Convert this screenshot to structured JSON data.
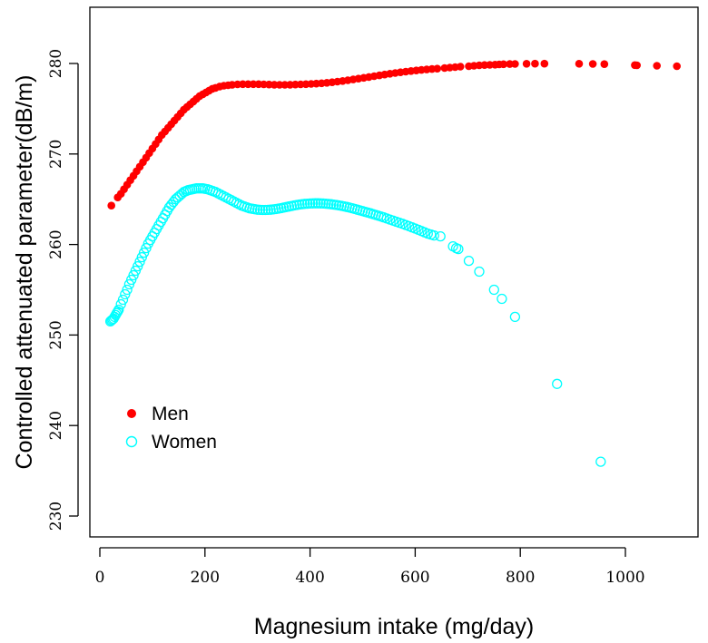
{
  "chart_data": {
    "type": "scatter",
    "title": "",
    "xlabel": "Magnesium intake (mg/day)",
    "ylabel": "Controlled attenuated parameter(dB/m)",
    "xlim": [
      -10,
      1120
    ],
    "ylim": [
      226,
      287
    ],
    "x_ticks": [
      0,
      200,
      400,
      600,
      800,
      1000
    ],
    "y_ticks": [
      230,
      240,
      250,
      260,
      270,
      280
    ],
    "grid": false,
    "legend_position": "middle-left",
    "series": [
      {
        "name": "Men",
        "marker": "filled-circle",
        "color": "#ff0000",
        "points": [
          [
            22,
            264.3
          ],
          [
            34,
            265.2
          ],
          [
            40,
            265.6
          ],
          [
            46,
            266.1
          ],
          [
            52,
            266.6
          ],
          [
            58,
            267.1
          ],
          [
            64,
            267.6
          ],
          [
            70,
            268.1
          ],
          [
            76,
            268.6
          ],
          [
            82,
            269.1
          ],
          [
            88,
            269.6
          ],
          [
            94,
            270.1
          ],
          [
            100,
            270.6
          ],
          [
            106,
            271.1
          ],
          [
            112,
            271.6
          ],
          [
            118,
            272.1
          ],
          [
            124,
            272.5
          ],
          [
            130,
            272.9
          ],
          [
            136,
            273.3
          ],
          [
            142,
            273.7
          ],
          [
            148,
            274.1
          ],
          [
            154,
            274.5
          ],
          [
            160,
            274.9
          ],
          [
            166,
            275.2
          ],
          [
            172,
            275.5
          ],
          [
            178,
            275.8
          ],
          [
            184,
            276.1
          ],
          [
            190,
            276.4
          ],
          [
            196,
            276.6
          ],
          [
            202,
            276.8
          ],
          [
            208,
            277.0
          ],
          [
            214,
            277.2
          ],
          [
            220,
            277.3
          ],
          [
            228,
            277.45
          ],
          [
            236,
            277.55
          ],
          [
            244,
            277.6
          ],
          [
            252,
            277.65
          ],
          [
            262,
            277.7
          ],
          [
            272,
            277.72
          ],
          [
            282,
            277.72
          ],
          [
            292,
            277.72
          ],
          [
            302,
            277.72
          ],
          [
            312,
            277.7
          ],
          [
            322,
            277.68
          ],
          [
            332,
            277.66
          ],
          [
            342,
            277.65
          ],
          [
            352,
            277.65
          ],
          [
            362,
            277.66
          ],
          [
            372,
            277.68
          ],
          [
            382,
            277.7
          ],
          [
            392,
            277.72
          ],
          [
            402,
            277.75
          ],
          [
            412,
            277.78
          ],
          [
            422,
            277.82
          ],
          [
            432,
            277.87
          ],
          [
            442,
            277.93
          ],
          [
            452,
            278.0
          ],
          [
            462,
            278.07
          ],
          [
            472,
            278.15
          ],
          [
            482,
            278.24
          ],
          [
            492,
            278.33
          ],
          [
            502,
            278.42
          ],
          [
            512,
            278.51
          ],
          [
            522,
            278.6
          ],
          [
            532,
            278.69
          ],
          [
            542,
            278.78
          ],
          [
            552,
            278.87
          ],
          [
            562,
            278.95
          ],
          [
            572,
            279.03
          ],
          [
            582,
            279.1
          ],
          [
            592,
            279.17
          ],
          [
            602,
            279.23
          ],
          [
            612,
            279.29
          ],
          [
            622,
            279.34
          ],
          [
            632,
            279.39
          ],
          [
            642,
            279.43
          ],
          [
            656,
            279.5
          ],
          [
            666,
            279.55
          ],
          [
            676,
            279.6
          ],
          [
            686,
            279.65
          ],
          [
            702,
            279.7
          ],
          [
            712,
            279.75
          ],
          [
            722,
            279.8
          ],
          [
            732,
            279.83
          ],
          [
            742,
            279.85
          ],
          [
            752,
            279.87
          ],
          [
            760,
            279.9
          ],
          [
            768,
            279.92
          ],
          [
            780,
            279.94
          ],
          [
            790,
            279.95
          ],
          [
            812,
            279.97
          ],
          [
            828,
            279.98
          ],
          [
            846,
            279.98
          ],
          [
            912,
            279.97
          ],
          [
            938,
            279.95
          ],
          [
            960,
            279.93
          ],
          [
            1018,
            279.82
          ],
          [
            1022,
            279.8
          ],
          [
            1060,
            279.75
          ],
          [
            1098,
            279.7
          ]
        ]
      },
      {
        "name": "Women",
        "marker": "open-circle",
        "color": "#00ffff",
        "points": [
          [
            20,
            251.5
          ],
          [
            22,
            251.6
          ],
          [
            24,
            251.7
          ],
          [
            26,
            251.8
          ],
          [
            28,
            252.0
          ],
          [
            30,
            252.2
          ],
          [
            32,
            252.4
          ],
          [
            34,
            252.6
          ],
          [
            36,
            252.8
          ],
          [
            40,
            253.4
          ],
          [
            44,
            253.9
          ],
          [
            48,
            254.5
          ],
          [
            52,
            255.0
          ],
          [
            56,
            255.6
          ],
          [
            60,
            256.1
          ],
          [
            64,
            256.6
          ],
          [
            68,
            257.1
          ],
          [
            72,
            257.6
          ],
          [
            76,
            258.1
          ],
          [
            80,
            258.6
          ],
          [
            84,
            259.1
          ],
          [
            88,
            259.6
          ],
          [
            92,
            260.1
          ],
          [
            96,
            260.5
          ],
          [
            100,
            260.9
          ],
          [
            104,
            261.3
          ],
          [
            108,
            261.7
          ],
          [
            112,
            262.1
          ],
          [
            116,
            262.5
          ],
          [
            120,
            262.9
          ],
          [
            124,
            263.3
          ],
          [
            128,
            263.7
          ],
          [
            132,
            264.1
          ],
          [
            136,
            264.4
          ],
          [
            140,
            264.7
          ],
          [
            144,
            265.0
          ],
          [
            148,
            265.2
          ],
          [
            152,
            265.4
          ],
          [
            156,
            265.6
          ],
          [
            160,
            265.8
          ],
          [
            164,
            265.9
          ],
          [
            168,
            266.0
          ],
          [
            172,
            266.05
          ],
          [
            176,
            266.1
          ],
          [
            180,
            266.15
          ],
          [
            184,
            266.2
          ],
          [
            188,
            266.2
          ],
          [
            192,
            266.2
          ],
          [
            196,
            266.2
          ],
          [
            200,
            266.15
          ],
          [
            205,
            266.1
          ],
          [
            210,
            266.0
          ],
          [
            215,
            265.9
          ],
          [
            220,
            265.8
          ],
          [
            225,
            265.65
          ],
          [
            230,
            265.5
          ],
          [
            235,
            265.35
          ],
          [
            240,
            265.2
          ],
          [
            245,
            265.05
          ],
          [
            250,
            264.9
          ],
          [
            255,
            264.75
          ],
          [
            260,
            264.6
          ],
          [
            265,
            264.45
          ],
          [
            270,
            264.3
          ],
          [
            275,
            264.2
          ],
          [
            280,
            264.1
          ],
          [
            285,
            264.0
          ],
          [
            290,
            263.95
          ],
          [
            295,
            263.9
          ],
          [
            300,
            263.85
          ],
          [
            305,
            263.83
          ],
          [
            310,
            263.82
          ],
          [
            315,
            263.82
          ],
          [
            320,
            263.83
          ],
          [
            325,
            263.85
          ],
          [
            330,
            263.88
          ],
          [
            335,
            263.92
          ],
          [
            340,
            263.97
          ],
          [
            345,
            264.02
          ],
          [
            350,
            264.08
          ],
          [
            355,
            264.14
          ],
          [
            360,
            264.2
          ],
          [
            365,
            264.26
          ],
          [
            370,
            264.32
          ],
          [
            375,
            264.37
          ],
          [
            380,
            264.42
          ],
          [
            385,
            264.46
          ],
          [
            390,
            264.49
          ],
          [
            395,
            264.51
          ],
          [
            400,
            264.53
          ],
          [
            405,
            264.54
          ],
          [
            410,
            264.55
          ],
          [
            415,
            264.55
          ],
          [
            420,
            264.54
          ],
          [
            425,
            264.53
          ],
          [
            430,
            264.51
          ],
          [
            435,
            264.48
          ],
          [
            440,
            264.45
          ],
          [
            445,
            264.41
          ],
          [
            450,
            264.37
          ],
          [
            455,
            264.32
          ],
          [
            460,
            264.27
          ],
          [
            465,
            264.21
          ],
          [
            470,
            264.15
          ],
          [
            475,
            264.08
          ],
          [
            480,
            264.01
          ],
          [
            485,
            263.93
          ],
          [
            490,
            263.85
          ],
          [
            495,
            263.77
          ],
          [
            500,
            263.69
          ],
          [
            505,
            263.61
          ],
          [
            510,
            263.53
          ],
          [
            515,
            263.45
          ],
          [
            520,
            263.36
          ],
          [
            525,
            263.27
          ],
          [
            530,
            263.18
          ],
          [
            535,
            263.09
          ],
          [
            540,
            263.0
          ],
          [
            546,
            262.88
          ],
          [
            552,
            262.76
          ],
          [
            558,
            262.64
          ],
          [
            564,
            262.52
          ],
          [
            570,
            262.4
          ],
          [
            576,
            262.28
          ],
          [
            582,
            262.15
          ],
          [
            588,
            262.02
          ],
          [
            594,
            261.89
          ],
          [
            600,
            261.76
          ],
          [
            606,
            261.62
          ],
          [
            612,
            261.48
          ],
          [
            618,
            261.34
          ],
          [
            624,
            261.2
          ],
          [
            630,
            261.1
          ],
          [
            636,
            261.0
          ],
          [
            648,
            260.9
          ],
          [
            672,
            259.8
          ],
          [
            678,
            259.6
          ],
          [
            682,
            259.5
          ],
          [
            702,
            258.2
          ],
          [
            722,
            257.0
          ],
          [
            750,
            255.0
          ],
          [
            765,
            254.0
          ],
          [
            790,
            252.0
          ],
          [
            870,
            244.6
          ],
          [
            953,
            236.0
          ]
        ]
      }
    ]
  }
}
